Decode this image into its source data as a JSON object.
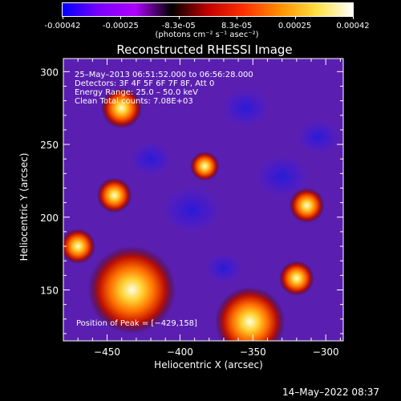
{
  "colorbar": {
    "ticks": [
      "-0.00042",
      "-0.00025",
      "-8.3e-05",
      "8.3e-05",
      "0.00025",
      "0.00042"
    ],
    "units": "(photons cm⁻² s⁻¹ asec⁻²)",
    "colors": [
      "#0000ff",
      "#7a00ff",
      "#b000ff",
      "#000000",
      "#c00000",
      "#ff3000",
      "#ff9000",
      "#ffe040",
      "#ffffff"
    ]
  },
  "chart_data": {
    "type": "heatmap",
    "title": "Reconstructed RHESSI Image",
    "xlabel": "Heliocentric X (arcsec)",
    "ylabel": "Heliocentric Y (arcsec)",
    "xlim": [
      -480,
      -288
    ],
    "ylim": [
      115,
      309
    ],
    "x_ticks": [
      -450,
      -400,
      -350,
      -300
    ],
    "x_tick_labels": [
      "−450",
      "−400",
      "−350",
      "−300"
    ],
    "y_ticks": [
      150,
      200,
      250,
      300
    ],
    "y_tick_labels": [
      "150",
      "200",
      "250",
      "300"
    ],
    "zlim": [
      -0.00042,
      0.00042
    ],
    "peak": [
      -429,
      158
    ],
    "info_lines": [
      "25–May–2013 06:51:52.000 to 06:56:28.000",
      "Detectors: 3F 4F 5F 6F 7F 8F, Att 0",
      "Energy Range: 25.0 – 50.0 keV",
      "Clean     Total counts: 7.08E+03"
    ],
    "peak_text": "Position of Peak = [−429,158]",
    "bright_sources": [
      {
        "x": -433,
        "y": 150,
        "r": 30
      },
      {
        "x": -352,
        "y": 128,
        "r": 24
      },
      {
        "x": -440,
        "y": 275,
        "r": 14
      },
      {
        "x": -445,
        "y": 215,
        "r": 12
      },
      {
        "x": -383,
        "y": 235,
        "r": 10
      },
      {
        "x": -313,
        "y": 208,
        "r": 12
      },
      {
        "x": -320,
        "y": 158,
        "r": 12
      },
      {
        "x": -470,
        "y": 180,
        "r": 12
      }
    ],
    "dim_sources": [
      {
        "x": -392,
        "y": 205,
        "r": 22
      },
      {
        "x": -330,
        "y": 228,
        "r": 20
      },
      {
        "x": -355,
        "y": 275,
        "r": 18
      },
      {
        "x": -420,
        "y": 240,
        "r": 16
      },
      {
        "x": -370,
        "y": 165,
        "r": 14
      },
      {
        "x": -305,
        "y": 255,
        "r": 16
      }
    ]
  },
  "footer": "14–May–2022 08:37"
}
